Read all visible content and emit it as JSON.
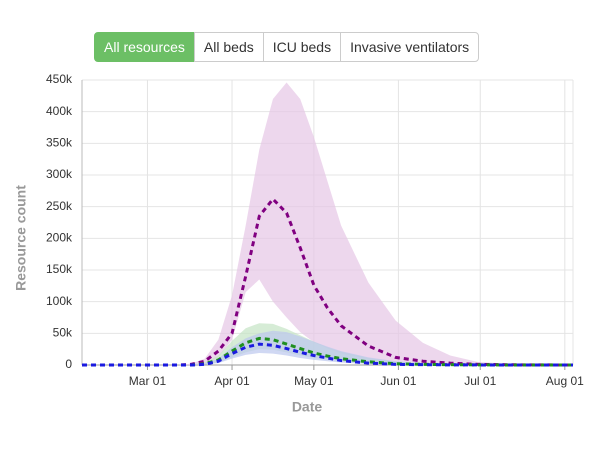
{
  "buttons": [
    "All resources",
    "All beds",
    "ICU beds",
    "Invasive ventilators"
  ],
  "active_button": 0,
  "chart_data": {
    "type": "line",
    "y_label": "Resource count",
    "x_label": "Date",
    "x": [
      5,
      40,
      45,
      50,
      55,
      60,
      65,
      70,
      75,
      80,
      85,
      90,
      95,
      100,
      110,
      120,
      130,
      140,
      150,
      165,
      185
    ],
    "xlim": [
      5,
      185
    ],
    "xticks": [
      {
        "value": 29,
        "label": "Mar 01"
      },
      {
        "value": 60,
        "label": "Apr 01"
      },
      {
        "value": 90,
        "label": "May 01"
      },
      {
        "value": 121,
        "label": "Jun 01"
      },
      {
        "value": 151,
        "label": "Jul 01"
      },
      {
        "value": 182,
        "label": "Aug 01"
      }
    ],
    "ylim": [
      0,
      450000
    ],
    "yticks": [
      0,
      {
        "value": 50000,
        "label": "50k"
      },
      {
        "value": 100000,
        "label": "100k"
      },
      {
        "value": 150000,
        "label": "150k"
      },
      {
        "value": 200000,
        "label": "200k"
      },
      {
        "value": 250000,
        "label": "250k"
      },
      {
        "value": 300000,
        "label": "300k"
      },
      {
        "value": 350000,
        "label": "350k"
      },
      {
        "value": 400000,
        "label": "400k"
      },
      {
        "value": 450000,
        "label": "450k"
      }
    ],
    "grid": true,
    "series": [
      {
        "color": "#800080",
        "band_color": "#e6c6e6",
        "values": [
          0,
          0,
          1000,
          6000,
          22000,
          50000,
          140000,
          235000,
          262000,
          240000,
          185000,
          126000,
          90000,
          62000,
          30000,
          12000,
          6000,
          3000,
          1000,
          300,
          0
        ],
        "upper": [
          0,
          0,
          2000,
          10000,
          40000,
          110000,
          220000,
          340000,
          420000,
          446000,
          420000,
          360000,
          290000,
          220000,
          130000,
          70000,
          35000,
          15000,
          5000,
          1000,
          0
        ],
        "lower": [
          0,
          0,
          0,
          1000,
          12000,
          40000,
          115000,
          135000,
          100000,
          75000,
          52000,
          36000,
          26000,
          18000,
          9000,
          4000,
          2000,
          1000,
          500,
          100,
          0
        ]
      },
      {
        "color": "#1f8f1f",
        "band_color": "#c4e4c4",
        "values": [
          0,
          0,
          0,
          2000,
          8000,
          22000,
          35000,
          42000,
          40000,
          33000,
          26000,
          19000,
          14000,
          10000,
          5000,
          2000,
          1000,
          500,
          200,
          0,
          0
        ],
        "upper": [
          0,
          0,
          0,
          4000,
          15000,
          38000,
          58000,
          66000,
          65000,
          57000,
          47000,
          37000,
          28000,
          21000,
          11000,
          5000,
          2500,
          1200,
          500,
          100,
          0
        ],
        "lower": [
          0,
          0,
          0,
          1000,
          4000,
          12000,
          20000,
          25000,
          24000,
          20000,
          15000,
          11000,
          8000,
          5500,
          2500,
          1000,
          500,
          200,
          100,
          0,
          0
        ]
      },
      {
        "color": "#1a1ae0",
        "band_color": "#bcc8ee",
        "values": [
          0,
          0,
          0,
          1000,
          6000,
          18000,
          28000,
          33000,
          31000,
          26000,
          20000,
          15000,
          11000,
          7000,
          3000,
          1000,
          500,
          200,
          100,
          0,
          0
        ],
        "upper": [
          0,
          0,
          0,
          2000,
          10000,
          28000,
          42000,
          50000,
          54000,
          52000,
          45000,
          37000,
          29000,
          22000,
          12000,
          6000,
          3000,
          1500,
          600,
          100,
          0
        ],
        "lower": [
          0,
          0,
          0,
          500,
          3000,
          10000,
          16000,
          19000,
          18000,
          15000,
          11000,
          8000,
          6000,
          4000,
          1500,
          600,
          300,
          100,
          50,
          0,
          0
        ]
      }
    ]
  }
}
